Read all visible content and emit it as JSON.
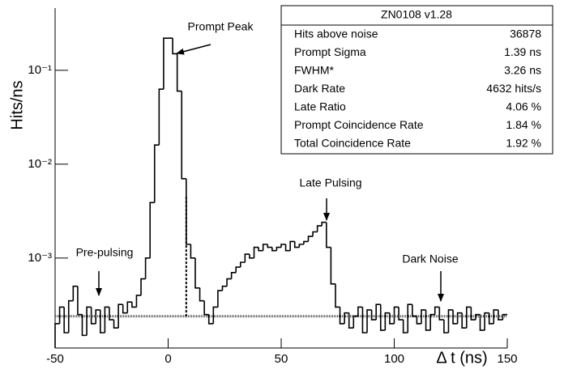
{
  "chart_data": {
    "type": "histogram",
    "ylabel": "Hits/ns",
    "xlabel": "Δ t (ns)",
    "log_y": true,
    "color": "#000000",
    "xlim": [
      -50,
      150
    ],
    "ylim": [
      0.00011,
      0.46
    ],
    "xticks": [
      -50,
      0,
      50,
      100,
      150
    ],
    "yticks": [
      {
        "value": 0.001,
        "label": "10⁻³"
      },
      {
        "value": 0.01,
        "label": "10⁻²"
      },
      {
        "value": 0.1,
        "label": "10⁻¹"
      }
    ],
    "bins": [
      -50,
      -48,
      -46,
      -44,
      -42,
      -40,
      -38,
      -36,
      -34,
      -32,
      -30,
      -28,
      -26,
      -24,
      -22,
      -20,
      -18,
      -16,
      -14,
      -12,
      -10,
      -8,
      -6,
      -4,
      -2,
      0,
      2,
      4,
      6,
      8,
      10,
      12,
      14,
      16,
      18,
      20,
      22,
      24,
      26,
      28,
      30,
      32,
      34,
      36,
      38,
      40,
      42,
      44,
      46,
      48,
      50,
      52,
      54,
      56,
      58,
      60,
      62,
      64,
      66,
      68,
      70,
      72,
      74,
      76,
      78,
      80,
      82,
      84,
      86,
      88,
      90,
      92,
      94,
      96,
      98,
      100,
      102,
      104,
      106,
      108,
      110,
      112,
      114,
      116,
      118,
      120,
      122,
      124,
      126,
      128,
      130,
      132,
      134,
      136,
      138,
      140,
      142,
      144,
      146,
      148,
      150
    ],
    "values": [
      0.0002,
      0.0003,
      0.00016,
      0.00035,
      0.0005,
      0.00025,
      0.00015,
      0.0003,
      0.0002,
      0.00028,
      0.00016,
      0.0003,
      0.00022,
      0.00018,
      0.00032,
      0.00026,
      0.00034,
      0.0003,
      0.0004,
      0.0006,
      0.001,
      0.0039,
      0.016,
      0.063,
      0.22,
      0.22,
      0.15,
      0.06,
      0.007,
      0.0014,
      0.001,
      0.00048,
      0.00035,
      0.00025,
      0.0002,
      0.0003,
      0.00045,
      0.0005,
      0.0006,
      0.0007,
      0.0008,
      0.0009,
      0.0011,
      0.001,
      0.0013,
      0.0012,
      0.0014,
      0.0013,
      0.0012,
      0.0013,
      0.0014,
      0.0012,
      0.0015,
      0.0013,
      0.0014,
      0.0015,
      0.0017,
      0.0019,
      0.0022,
      0.0024,
      0.0013,
      0.00053,
      0.0003,
      0.0002,
      0.00026,
      0.00018,
      0.00024,
      0.0003,
      0.00016,
      0.00028,
      0.00022,
      0.00032,
      0.00017,
      0.00026,
      0.0002,
      0.0003,
      0.00022,
      0.00016,
      0.00032,
      0.00024,
      0.0002,
      0.00028,
      0.00017,
      0.00025,
      0.0003,
      0.00022,
      0.00016,
      0.00028,
      0.0002,
      0.00026,
      0.00018,
      0.0003,
      0.00022,
      0.00025,
      0.00017,
      0.00026,
      0.0002,
      0.00028,
      0.00022,
      0.00025
    ],
    "dark_noise_level": 0.00024,
    "prompt_window_edge": {
      "x": 8,
      "top": 0.0045
    },
    "annotations": [
      "Prompt Peak",
      "Late Pulsing",
      "Pre-pulsing",
      "Dark Noise"
    ],
    "stats": {
      "title": "ZN0108 v1.28",
      "rows": [
        [
          "Hits above noise",
          "36878"
        ],
        [
          "Prompt Sigma",
          "1.39 ns"
        ],
        [
          "FWHM*",
          "3.26 ns"
        ],
        [
          "Dark Rate",
          "4632 hits/s"
        ],
        [
          "Late Ratio",
          "4.06 %"
        ],
        [
          "Prompt Coincidence Rate",
          "1.84 %"
        ],
        [
          "Total Coincidence Rate",
          "1.92 %"
        ]
      ]
    }
  }
}
